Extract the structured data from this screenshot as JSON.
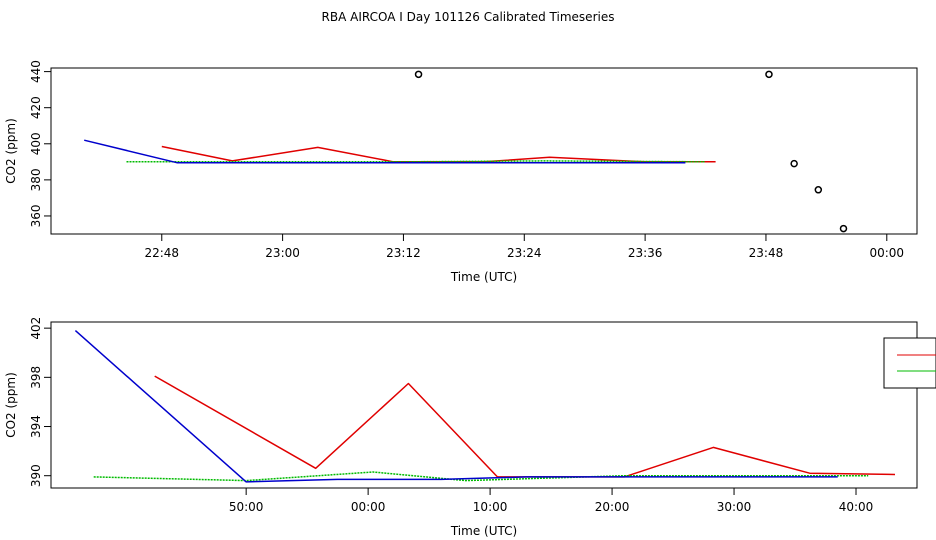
{
  "title": "RBA AIRCOA I  Day 101126  Calibrated Timeseries",
  "colors": {
    "red": "#e00000",
    "green": "#00bb00",
    "blue": "#0000cc"
  },
  "chart_data": [
    {
      "type": "line",
      "xlabel": "Time (UTC)",
      "ylabel": "CO2 (ppm)",
      "x_unit": "minutes after 22:00",
      "xlim": [
        37,
        123
      ],
      "ylim": [
        350,
        442
      ],
      "xticks": [
        48,
        60,
        72,
        84,
        96,
        108,
        120
      ],
      "xtick_labels": [
        "22:48",
        "23:00",
        "23:12",
        "23:24",
        "23:36",
        "23:48",
        "00:00"
      ],
      "yticks": [
        360,
        380,
        400,
        420,
        440
      ],
      "ytick_labels": [
        "360",
        "380",
        "400",
        "420",
        "440"
      ],
      "series": [
        {
          "color": "red",
          "style": "line",
          "x": [
            48,
            55,
            63.5,
            71,
            80,
            86.5,
            96,
            103
          ],
          "y": [
            398.5,
            390.5,
            398,
            390,
            390,
            392.5,
            390,
            390
          ]
        },
        {
          "color": "green",
          "style": "line",
          "x": [
            44.5,
            58,
            64,
            72,
            86,
            102
          ],
          "y": [
            390,
            390,
            390,
            390,
            390.5,
            390
          ]
        },
        {
          "color": "blue",
          "style": "line",
          "x": [
            40.3,
            49.5,
            62,
            72,
            86,
            100
          ],
          "y": [
            402,
            389.5,
            389.5,
            389.5,
            389.5,
            389.5
          ]
        },
        {
          "color": "black",
          "style": "points",
          "x": [
            73.5,
            108.3,
            110.8,
            113.2,
            115.7
          ],
          "y": [
            438.5,
            438.5,
            389,
            374.5,
            353
          ]
        }
      ]
    },
    {
      "type": "line",
      "xlabel": "Time (UTC)",
      "ylabel": "CO2 (ppm)",
      "xlim": [
        -26,
        45
      ],
      "ylim": [
        389,
        402.5
      ],
      "xticks": [
        -10,
        0,
        10,
        20,
        30,
        40
      ],
      "xtick_labels": [
        "50:00",
        "00:00",
        "10:00",
        "20:00",
        "30:00",
        "40:00"
      ],
      "yticks": [
        390,
        394,
        398,
        402
      ],
      "ytick_labels": [
        "390",
        "394",
        "398",
        "402"
      ],
      "series": [
        {
          "color": "red",
          "style": "line",
          "x": [
            -17.5,
            -4.3,
            3.3,
            10.6,
            21,
            28.3,
            36.2,
            43.2
          ],
          "y": [
            398.1,
            390.6,
            397.5,
            389.9,
            389.9,
            392.3,
            390.2,
            390.1
          ]
        },
        {
          "color": "green",
          "style": "line",
          "x": [
            -22.5,
            -10,
            0.4,
            8,
            21,
            41
          ],
          "y": [
            389.9,
            389.6,
            390.3,
            389.6,
            390,
            390
          ]
        },
        {
          "color": "blue",
          "style": "line",
          "x": [
            -24,
            -10,
            -2.5,
            6,
            13,
            38.5
          ],
          "y": [
            401.8,
            389.5,
            389.7,
            389.7,
            389.9,
            389.9
          ]
        }
      ]
    }
  ]
}
